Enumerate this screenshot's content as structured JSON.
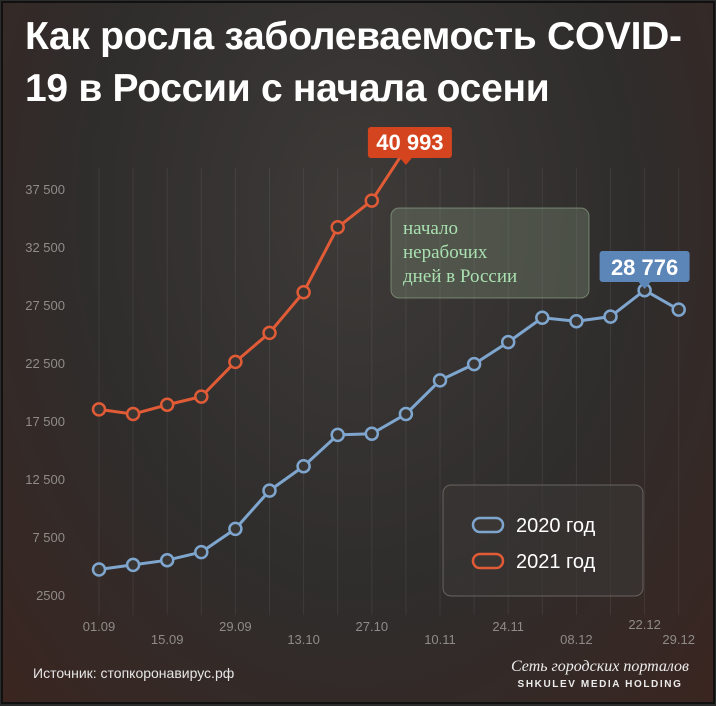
{
  "title": "Как росла заболеваемость COVID-19 в России с начала осени",
  "source": "Источник: стопкоронавирус.рф",
  "brand": {
    "top": "Сеть городских порталов",
    "bottom": "SHKULEV MEDIA HOLDING"
  },
  "chart_data": {
    "type": "line",
    "title": "Как росла заболеваемость COVID-19 в России с начала осени",
    "xlabel": "",
    "ylabel": "",
    "x_ticks": [
      "01.09",
      "15.09",
      "29.09",
      "13.10",
      "27.10",
      "10.11",
      "24.11",
      "08.12",
      "22.12",
      "29.12"
    ],
    "y_ticks": [
      2500,
      7500,
      12500,
      17500,
      22500,
      27500,
      32500,
      37500
    ],
    "y_tick_labels": [
      "2500",
      "7 500",
      "12 500",
      "17 500",
      "22 500",
      "27 500",
      "32 500",
      "37 500"
    ],
    "ylim": [
      2500,
      37500
    ],
    "grid": true,
    "legend_position": "bottom-right",
    "series": [
      {
        "name": "2020 год",
        "color": "#7fa6cf",
        "x": [
          "01.09",
          "08.09",
          "15.09",
          "22.09",
          "29.09",
          "06.10",
          "13.10",
          "20.10",
          "27.10",
          "03.11",
          "10.11",
          "17.11",
          "24.11",
          "01.12",
          "08.12",
          "15.12",
          "22.12",
          "29.12"
        ],
        "values": [
          4700,
          5100,
          5500,
          6200,
          8200,
          11500,
          13600,
          16300,
          16400,
          18100,
          21000,
          22400,
          24300,
          26400,
          26100,
          26500,
          28776,
          27100
        ]
      },
      {
        "name": "2021 год",
        "color": "#e05b36",
        "x": [
          "01.09",
          "08.09",
          "15.09",
          "22.09",
          "29.09",
          "06.10",
          "13.10",
          "20.10",
          "27.10",
          "03.11"
        ],
        "values": [
          18500,
          18100,
          18900,
          19600,
          22600,
          25100,
          28600,
          34200,
          36500,
          40993
        ]
      }
    ],
    "annotations": [
      {
        "text": "40 993",
        "series": "2021 год",
        "x": "03.11"
      },
      {
        "text": "28 776",
        "series": "2020 год",
        "x": "22.12"
      },
      {
        "text": "начало нерабочих дней в России",
        "x": "03.11"
      }
    ]
  }
}
